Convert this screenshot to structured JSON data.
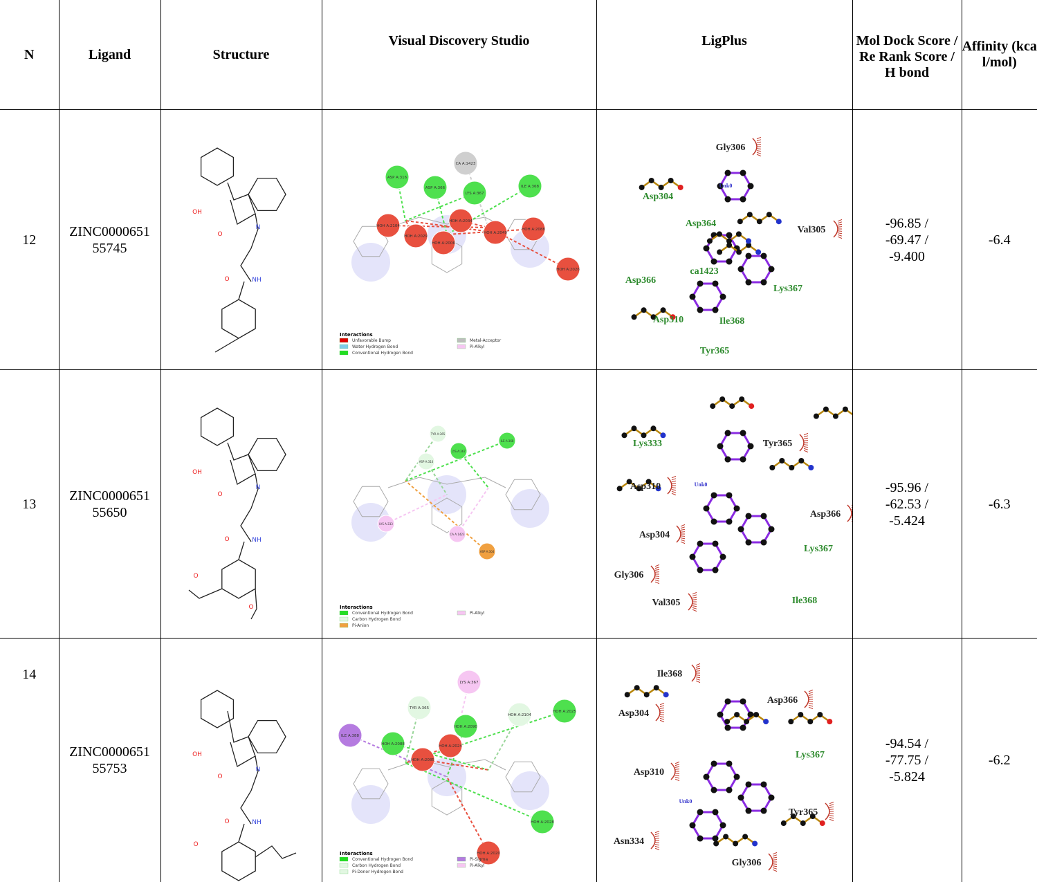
{
  "table": {
    "headers": [
      "N",
      "Ligand",
      "Structure",
      "Visual Discovery Studio",
      "LigPlus",
      "Mol Dock Score / Re Rank Score / H bond",
      "Affinity (kcal/mol)"
    ],
    "rows": [
      {
        "n": "12",
        "ligand": "ZINC000065155745",
        "score": "-96.85 / -69.47 / -9.400",
        "affinity": "-6.4",
        "atoms": [
          "OH",
          "O",
          "N",
          "O",
          "NH"
        ],
        "vds_nodes": [
          {
            "label": "ASP A:316",
            "color": "#4ee04e"
          },
          {
            "label": "ASP A:366",
            "color": "#4ee04e"
          },
          {
            "label": "CA A:1423",
            "color": "#cfcfcf"
          },
          {
            "label": "LYS A:367",
            "color": "#4ee04e"
          },
          {
            "label": "ILE A:368",
            "color": "#4ee04e"
          },
          {
            "label": "HOH A:2104",
            "color": "#e8503f"
          },
          {
            "label": "HOH A:2029",
            "color": "#e8503f"
          },
          {
            "label": "HOH A:2006",
            "color": "#e8503f"
          },
          {
            "label": "HOH A:2034",
            "color": "#e8503f"
          },
          {
            "label": "HOH A:2049",
            "color": "#e8503f"
          },
          {
            "label": "HOH A:2088",
            "color": "#e8503f"
          },
          {
            "label": "HOH A:2026",
            "color": "#e8503f"
          }
        ],
        "legend_title": "Interactions",
        "legend": [
          {
            "label": "Unfavorable Bump",
            "color": "#e00000"
          },
          {
            "label": "Water Hydrogen Bond",
            "color": "#7ecbe8"
          },
          {
            "label": "Conventional Hydrogen Bond",
            "color": "#22dd22"
          },
          {
            "label": "Metal-Acceptor",
            "color": "#bdbdbd"
          },
          {
            "label": "Pi-Alkyl",
            "color": "#f6c6f2"
          }
        ],
        "ligplus": [
          {
            "label": "Gly306",
            "color": "#222222"
          },
          {
            "label": "Asp304",
            "color": "#2e8b2e"
          },
          {
            "label": "Asp364",
            "color": "#2e8b2e"
          },
          {
            "label": "Val305",
            "color": "#222222"
          },
          {
            "label": "Asp366",
            "color": "#2e8b2e"
          },
          {
            "label": "ca1423",
            "color": "#2e8b2e"
          },
          {
            "label": "Lys367",
            "color": "#2e8b2e"
          },
          {
            "label": "Asp310",
            "color": "#2e8b2e"
          },
          {
            "label": "Ile368",
            "color": "#2e8b2e"
          },
          {
            "label": "Tyr365",
            "color": "#2e8b2e"
          },
          {
            "label": "Unk0",
            "color": "#3333cc"
          }
        ]
      },
      {
        "n": "13",
        "ligand": "ZINC000065155650",
        "score": "-95.96 / -62.53 / -5.424",
        "affinity": "-6.3",
        "atoms": [
          "OH",
          "O",
          "N",
          "O",
          "NH",
          "O",
          "O"
        ],
        "vds_nodes": [
          {
            "label": "TYR A:365",
            "color": "#e2f7e2"
          },
          {
            "label": "ASP A:310",
            "color": "#e2f7e2"
          },
          {
            "label": "LYS A:367",
            "color": "#4ee04e"
          },
          {
            "label": "ILE A:368",
            "color": "#4ee04e"
          },
          {
            "label": "LYS A:333",
            "color": "#f6c6f2"
          },
          {
            "label": "CA A:1423",
            "color": "#f6c6f2"
          },
          {
            "label": "ASP A:304",
            "color": "#f0a040"
          }
        ],
        "legend_title": "Interactions",
        "legend": [
          {
            "label": "Conventional Hydrogen Bond",
            "color": "#22dd22"
          },
          {
            "label": "Carbon Hydrogen Bond",
            "color": "#e2f7e2"
          },
          {
            "label": "Pi-Anion",
            "color": "#f0a040"
          },
          {
            "label": "Pi-Alkyl",
            "color": "#f6c6f2"
          }
        ],
        "ligplus": [
          {
            "label": "Lys333",
            "color": "#2e8b2e"
          },
          {
            "label": "Tyr365",
            "color": "#222222"
          },
          {
            "label": "Asp310",
            "color": "#222222"
          },
          {
            "label": "Unk0",
            "color": "#3333cc"
          },
          {
            "label": "Asp366",
            "color": "#222222"
          },
          {
            "label": "Asp304",
            "color": "#222222"
          },
          {
            "label": "Lys367",
            "color": "#2e8b2e"
          },
          {
            "label": "Gly306",
            "color": "#222222"
          },
          {
            "label": "Val305",
            "color": "#222222"
          },
          {
            "label": "Ile368",
            "color": "#2e8b2e"
          }
        ]
      },
      {
        "n": "14",
        "ligand": "ZINC000065155753",
        "score": "-94.54 / -77.75 / -5.824",
        "affinity": "-6.2",
        "atoms": [
          "OH",
          "O",
          "N",
          "O",
          "NH",
          "O"
        ],
        "vds_nodes": [
          {
            "label": "TYR A:365",
            "color": "#e2f7e2"
          },
          {
            "label": "LYS A:367",
            "color": "#f6c6f2"
          },
          {
            "label": "HOH A:2104",
            "color": "#e2f7e2"
          },
          {
            "label": "HOH A:2025",
            "color": "#4ee04e"
          },
          {
            "label": "ILE A:388",
            "color": "#b57be0"
          },
          {
            "label": "HOH A:2088",
            "color": "#4ee04e"
          },
          {
            "label": "HOH A:2024",
            "color": "#e8503f"
          },
          {
            "label": "HOH A:2090",
            "color": "#4ee04e"
          },
          {
            "label": "HOH A:2085",
            "color": "#e8503f"
          },
          {
            "label": "HOH A:2028",
            "color": "#4ee04e"
          },
          {
            "label": "HOH A:2020",
            "color": "#e8503f"
          }
        ],
        "legend_title": "Interactions",
        "legend": [
          {
            "label": "Conventional Hydrogen Bond",
            "color": "#22dd22"
          },
          {
            "label": "Carbon Hydrogen Bond",
            "color": "#e2f7e2"
          },
          {
            "label": "Pi-Donor Hydrogen Bond",
            "color": "#e2f7e2"
          },
          {
            "label": "Pi-Sigma",
            "color": "#b57be0"
          },
          {
            "label": "Pi-Alkyl",
            "color": "#f6c6f2"
          }
        ],
        "ligplus": [
          {
            "label": "Ile368",
            "color": "#222222"
          },
          {
            "label": "Asp366",
            "color": "#222222"
          },
          {
            "label": "Asp304",
            "color": "#222222"
          },
          {
            "label": "Lys367",
            "color": "#2e8b2e"
          },
          {
            "label": "Asp310",
            "color": "#222222"
          },
          {
            "label": "Unk0",
            "color": "#3333cc"
          },
          {
            "label": "Tyr365",
            "color": "#222222"
          },
          {
            "label": "Asn334",
            "color": "#222222"
          },
          {
            "label": "Gly306",
            "color": "#222222"
          }
        ]
      }
    ]
  }
}
